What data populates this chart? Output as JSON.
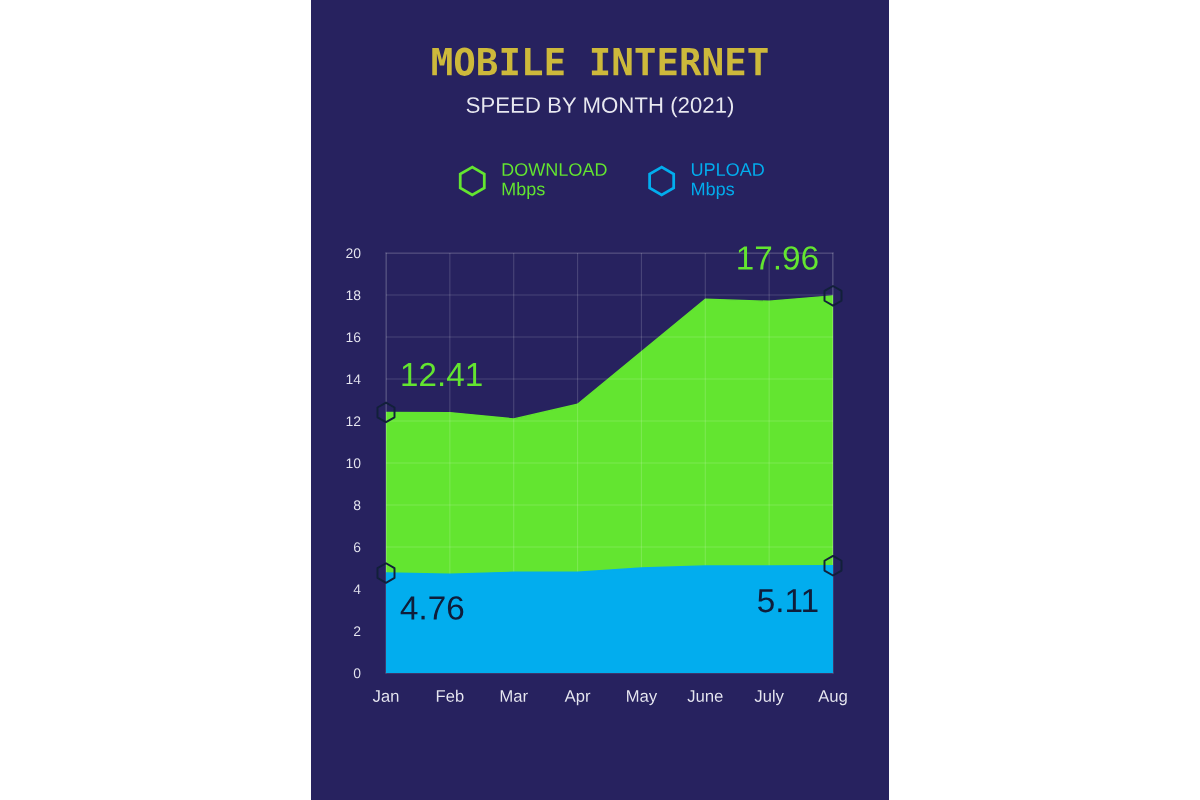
{
  "chart_data": {
    "type": "area",
    "title": "MOBILE INTERNET",
    "subtitle": "SPEED BY MONTH (2021)",
    "categories": [
      "Jan",
      "Feb",
      "Mar",
      "Apr",
      "May",
      "June",
      "July",
      "Aug"
    ],
    "series": [
      {
        "name": "DOWNLOAD\nMbps",
        "color": "#63e530",
        "values": [
          12.41,
          12.4,
          12.1,
          12.8,
          15.3,
          17.8,
          17.7,
          17.96
        ],
        "value_labels": [
          "12.41",
          null,
          null,
          null,
          null,
          null,
          null,
          "17.96"
        ]
      },
      {
        "name": "UPLOAD\nMbps",
        "color": "#02adee",
        "values": [
          4.76,
          4.7,
          4.8,
          4.8,
          5.0,
          5.1,
          5.1,
          5.11
        ],
        "value_labels": [
          "4.76",
          null,
          null,
          null,
          null,
          null,
          null,
          "5.11"
        ]
      }
    ],
    "ylim": [
      0,
      20
    ],
    "yticks": [
      0,
      2,
      4,
      6,
      8,
      10,
      12,
      14,
      16,
      18,
      20
    ],
    "grid": true,
    "legend": "top"
  }
}
